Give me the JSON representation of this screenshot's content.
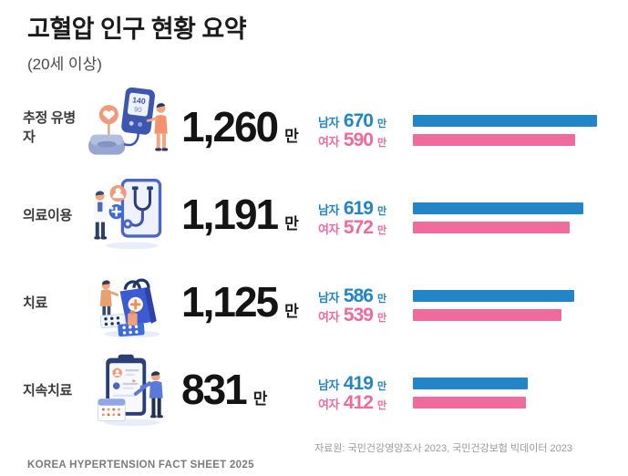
{
  "header": {
    "title": "고혈압 인구 현황 요약",
    "subtitle": "(20세 이상)"
  },
  "labels": {
    "male": "남자",
    "female": "여자",
    "unit": "만"
  },
  "colors": {
    "male": "#2285C7",
    "female": "#EF6A9D"
  },
  "rows": [
    {
      "label": "추정 유병자",
      "icon": "blood-pressure-monitor",
      "total": "1,260",
      "male": "670",
      "female": "590"
    },
    {
      "label": "의료이용",
      "icon": "doctor-tablet-stethoscope",
      "total": "1,191",
      "male": "619",
      "female": "572"
    },
    {
      "label": "치료",
      "icon": "medicine-bag-pills",
      "total": "1,125",
      "male": "586",
      "female": "539"
    },
    {
      "label": "지속치료",
      "icon": "clipboard-checklist",
      "total": "831",
      "male": "419",
      "female": "412"
    }
  ],
  "chart_data": {
    "type": "bar",
    "orientation": "horizontal",
    "title": "고혈압 인구 현황 요약 (20세 이상)",
    "unit": "만",
    "categories": [
      "추정 유병자",
      "의료이용",
      "치료",
      "지속치료"
    ],
    "totals": [
      1260,
      1191,
      1125,
      831
    ],
    "series": [
      {
        "name": "남자",
        "color": "#2285C7",
        "values": [
          670,
          619,
          586,
          419
        ]
      },
      {
        "name": "여자",
        "color": "#EF6A9D",
        "values": [
          590,
          572,
          539,
          412
        ]
      }
    ],
    "xlim": [
      0,
      670
    ],
    "grid": false,
    "legend_position": "inline-left"
  },
  "footer": {
    "source": "자료원: 국민건강영양조사 2023, 국민건강보험 빅데이터 2023",
    "brand": "KOREA HYPERTENSION FACT SHEET 2025"
  }
}
